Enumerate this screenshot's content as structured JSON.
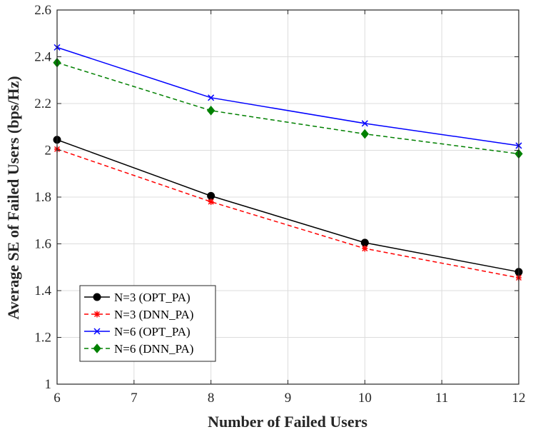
{
  "chart_data": {
    "type": "line",
    "title": "",
    "xlabel": "Number of Failed Users",
    "ylabel": "Average SE of Failed Users (bps/Hz)",
    "xlim": [
      6,
      12
    ],
    "ylim": [
      1,
      2.6
    ],
    "xticks": [
      6,
      7,
      8,
      9,
      10,
      11,
      12
    ],
    "yticks": [
      1,
      1.2,
      1.4,
      1.6,
      1.8,
      2,
      2.2,
      2.4,
      2.6
    ],
    "ytick_labels": [
      "1",
      "1.2",
      "1.4",
      "1.6",
      "1.8",
      "2",
      "2.2",
      "2.4",
      "2.6"
    ],
    "grid": true,
    "legend_position": "bottom-left",
    "x": [
      6,
      8,
      10,
      12
    ],
    "series": [
      {
        "name": "N=3 (OPT_PA)",
        "values": [
          2.045,
          1.805,
          1.605,
          1.48
        ],
        "color": "#000000",
        "dash": "solid",
        "marker": "circle"
      },
      {
        "name": "N=3 (DNN_PA)",
        "values": [
          2.005,
          1.78,
          1.58,
          1.455
        ],
        "color": "#ff0000",
        "dash": "dashed",
        "marker": "asterisk"
      },
      {
        "name": "N=6 (OPT_PA)",
        "values": [
          2.44,
          2.225,
          2.115,
          2.02
        ],
        "color": "#0000ff",
        "dash": "solid",
        "marker": "x"
      },
      {
        "name": "N=6 (DNN_PA)",
        "values": [
          2.375,
          2.17,
          2.07,
          1.985
        ],
        "color": "#008000",
        "dash": "dashed",
        "marker": "diamond"
      }
    ]
  }
}
